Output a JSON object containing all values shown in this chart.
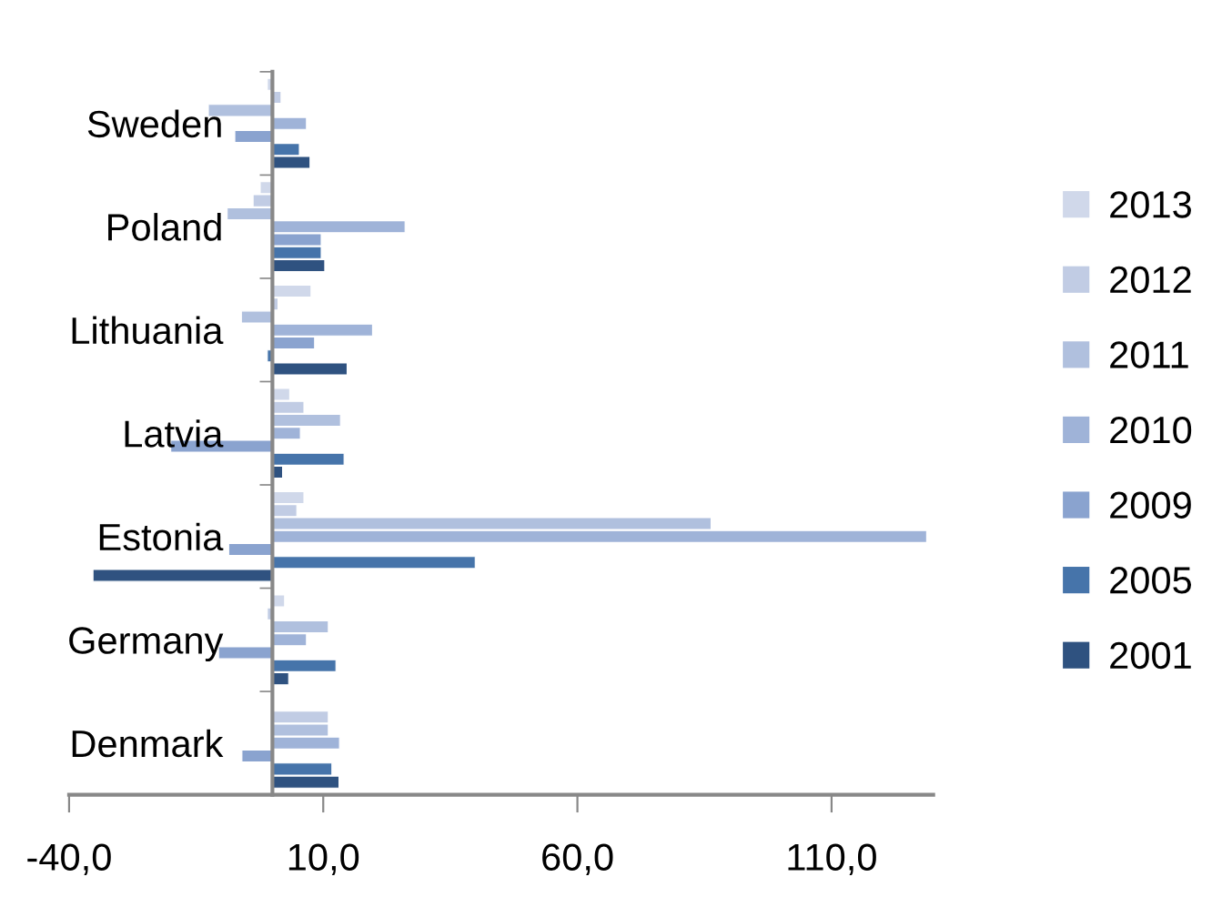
{
  "chart_data": {
    "type": "bar",
    "orientation": "horizontal",
    "categories": [
      "Sweden",
      "Poland",
      "Lithuania",
      "Latvia",
      "Estonia",
      "Germany",
      "Denmark"
    ],
    "series": [
      {
        "name": "2013",
        "color": "#d0d8ea",
        "values": [
          -1.0,
          -2.4,
          7.6,
          3.4,
          6.2,
          2.4,
          null
        ]
      },
      {
        "name": "2012",
        "color": "#c1cce4",
        "values": [
          1.7,
          -3.8,
          1.1,
          6.2,
          4.8,
          -1.0,
          11.0
        ]
      },
      {
        "name": "2011",
        "color": "#b0c0de",
        "values": [
          -12.6,
          -8.9,
          -6.1,
          13.4,
          86.3,
          11.0,
          11.0
        ]
      },
      {
        "name": "2010",
        "color": "#9fb3d8",
        "values": [
          6.7,
          26.1,
          19.7,
          5.5,
          128.7,
          6.7,
          13.2
        ]
      },
      {
        "name": "2009",
        "color": "#8aa3cf",
        "values": [
          -7.4,
          9.6,
          8.3,
          -20.0,
          -8.6,
          -10.6,
          -6.0
        ]
      },
      {
        "name": "2005",
        "color": "#4674aa",
        "values": [
          5.3,
          9.6,
          -1.0,
          14.1,
          39.9,
          12.5,
          11.7
        ]
      },
      {
        "name": "2001",
        "color": "#2f5280",
        "values": [
          7.4,
          10.3,
          14.7,
          2.0,
          -35.3,
          3.2,
          13.1
        ]
      }
    ],
    "xlim": [
      -40,
      130
    ],
    "xticks": [
      {
        "value": -40,
        "label": "-40,0"
      },
      {
        "value": 10,
        "label": "10,0"
      },
      {
        "value": 60,
        "label": "60,0"
      },
      {
        "value": 110,
        "label": "110,0"
      }
    ],
    "grid": false,
    "legend": "right"
  }
}
